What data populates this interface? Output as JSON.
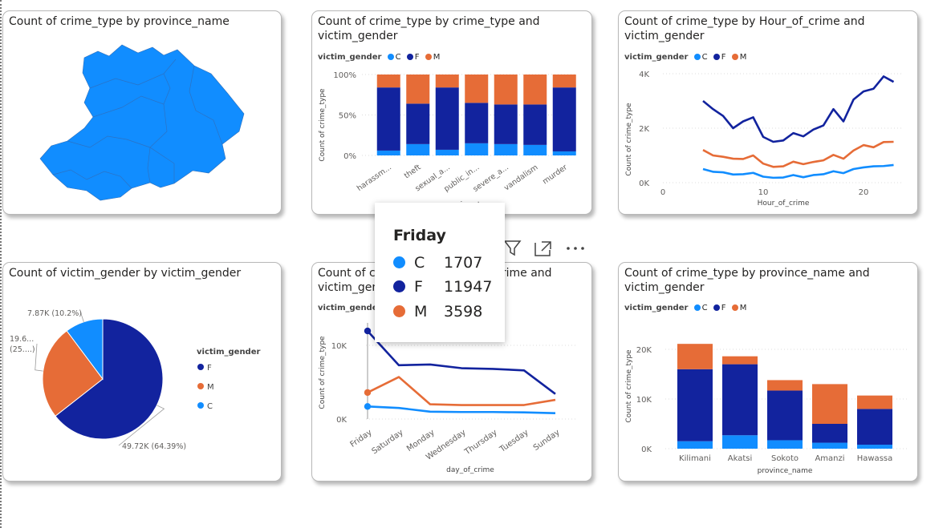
{
  "colors": {
    "C": "#118DFF",
    "F": "#12239E",
    "M": "#E66C37",
    "map": "#118DFF"
  },
  "legend": {
    "title": "victim_gender",
    "items": [
      "C",
      "F",
      "M"
    ]
  },
  "map_card": {
    "title": "Count of crime_type by province_name"
  },
  "stacked_card": {
    "title": "Count of crime_type by crime_type and victim_gender",
    "ylabel": "Count of crime_type",
    "xlabel": "crime_type"
  },
  "hour_card": {
    "title": "Count of crime_type by Hour_of_crime and victim_gender",
    "ylabel": "Count of crime_type",
    "xlabel": "Hour_of_crime"
  },
  "pie_card": {
    "title": "Count of victim_gender by victim_gender",
    "legend_title": "victim_gender",
    "legend_items": [
      "F",
      "M",
      "C"
    ]
  },
  "day_card": {
    "title": "Count of crime_type by day_of_crime and victim_gender",
    "ylabel": "Count of crime_type",
    "xlabel": "day_of_crime"
  },
  "province_card": {
    "title": "Count of crime_type by province_name and victim_gender",
    "ylabel": "Count of crime_type",
    "xlabel": "province_name"
  },
  "tooltip": {
    "title": "Friday",
    "rows": [
      {
        "label": "C",
        "value": "1707"
      },
      {
        "label": "F",
        "value": "11947"
      },
      {
        "label": "M",
        "value": "3598"
      }
    ]
  },
  "visual_header": {
    "icons": [
      "filter-icon",
      "focus-mode-icon",
      "more-options-icon"
    ]
  },
  "chart_data": [
    {
      "type": "bar",
      "stacked": "100%",
      "categories": [
        "harassm...",
        "theft",
        "sexual_a...",
        "public_in...",
        "severe_a...",
        "vandalism",
        "murder"
      ],
      "series": [
        {
          "name": "C",
          "values": [
            6,
            14,
            7,
            15,
            14,
            13,
            5
          ]
        },
        {
          "name": "F",
          "values": [
            78,
            50,
            77,
            50,
            49,
            50,
            79
          ]
        },
        {
          "name": "M",
          "values": [
            16,
            36,
            16,
            35,
            37,
            37,
            16
          ]
        }
      ],
      "yticks": [
        "0%",
        "50%",
        "100%"
      ],
      "ylim": [
        0,
        100
      ]
    },
    {
      "type": "line",
      "x": [
        4,
        5,
        6,
        7,
        8,
        9,
        10,
        11,
        12,
        13,
        14,
        15,
        16,
        17,
        18,
        19,
        20,
        21,
        22,
        23
      ],
      "series": [
        {
          "name": "C",
          "values": [
            500,
            400,
            380,
            300,
            310,
            360,
            220,
            180,
            190,
            280,
            200,
            280,
            310,
            420,
            350,
            500,
            560,
            600,
            610,
            650
          ]
        },
        {
          "name": "F",
          "values": [
            3000,
            2700,
            2450,
            2000,
            2250,
            2400,
            1680,
            1500,
            1550,
            1820,
            1700,
            1950,
            2100,
            2700,
            2250,
            3050,
            3350,
            3450,
            3900,
            3700
          ]
        },
        {
          "name": "M",
          "values": [
            1200,
            1000,
            950,
            880,
            870,
            1000,
            700,
            580,
            600,
            770,
            680,
            760,
            820,
            1020,
            880,
            1180,
            1380,
            1300,
            1490,
            1500
          ]
        }
      ],
      "xticks": [
        0,
        10,
        20
      ],
      "yticks": [
        "0K",
        "2K",
        "4K"
      ],
      "xlim": [
        0,
        24
      ],
      "ylim": [
        0,
        4000
      ]
    },
    {
      "type": "pie",
      "labels": [
        "F",
        "M",
        "C"
      ],
      "values": [
        49720,
        19600,
        7870
      ],
      "data_labels": [
        "49.72K (64.39%)",
        "19.6...\n(25....)",
        "7.87K (10.2%)"
      ]
    },
    {
      "type": "line",
      "categories": [
        "Friday",
        "Saturday",
        "Monday",
        "Wednesday",
        "Thursday",
        "Tuesday",
        "Sunday"
      ],
      "series": [
        {
          "name": "C",
          "values": [
            1707,
            1500,
            1000,
            950,
            950,
            900,
            800
          ]
        },
        {
          "name": "F",
          "values": [
            11947,
            7300,
            7400,
            6900,
            6800,
            6600,
            3400
          ]
        },
        {
          "name": "M",
          "values": [
            3598,
            5700,
            2000,
            1900,
            1900,
            1900,
            2600
          ]
        }
      ],
      "yticks": [
        "0K",
        "10K"
      ],
      "ylim": [
        0,
        13500
      ]
    },
    {
      "type": "bar",
      "stacked": true,
      "categories": [
        "Kilimani",
        "Akatsi",
        "Sokoto",
        "Amanzi",
        "Hawassa"
      ],
      "series": [
        {
          "name": "C",
          "values": [
            1500,
            2700,
            1700,
            1200,
            800
          ]
        },
        {
          "name": "F",
          "values": [
            14500,
            14300,
            10000,
            3800,
            7200
          ]
        },
        {
          "name": "M",
          "values": [
            5100,
            1600,
            2100,
            8000,
            2700
          ]
        }
      ],
      "yticks": [
        "0K",
        "10K",
        "20K"
      ],
      "ylim": [
        0,
        22000
      ]
    }
  ]
}
